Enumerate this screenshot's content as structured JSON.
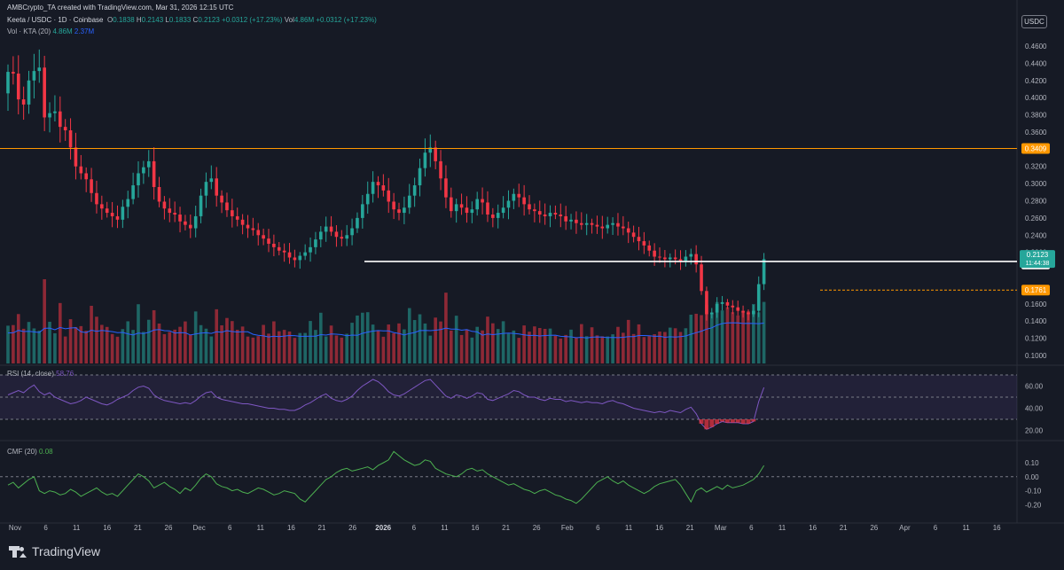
{
  "header": {
    "credit": "AMBCrypto_TA created with TradingView.com, Mar 31, 2026 12:15 UTC",
    "symbol": "Keeta / USDC · 1D · Coinbase",
    "ohlc": {
      "o_label": "O",
      "o": "0.1838",
      "h_label": "H",
      "h": "0.2143",
      "l_label": "L",
      "l": "0.1833",
      "c_label": "C",
      "c": "0.2123",
      "change": "+0.0312 (+17.23%)",
      "vol_label": "Vol",
      "vol": "4.86M",
      "vol_change": "+0.0312 (+17.23%)"
    },
    "vol_indicator": {
      "label": "Vol · KTA (20)",
      "value1": "4.86M",
      "value2": "2.37M"
    },
    "currency": "USDC"
  },
  "rsi": {
    "label": "RSI (14, close)",
    "value": "58.76"
  },
  "cmf": {
    "label": "CMF (20)",
    "value": "0.08"
  },
  "brand": "TradingView",
  "colors": {
    "up": "#26a69a",
    "down": "#f23645",
    "orange": "#ff9800",
    "rsi": "#7e57c2",
    "cmf": "#4caf50",
    "ma": "#2962ff"
  },
  "chart_data": {
    "type": "candlestick",
    "x_ticks": [
      "Nov",
      "6",
      "11",
      "16",
      "21",
      "26",
      "Dec",
      "6",
      "11",
      "16",
      "21",
      "26",
      "2026",
      "6",
      "11",
      "16",
      "21",
      "26",
      "Feb",
      "6",
      "11",
      "16",
      "21",
      "Mar",
      "6",
      "11",
      "16",
      "21",
      "26",
      "Apr",
      "6",
      "11",
      "16"
    ],
    "price_axis": {
      "ticks": [
        "0.4600",
        "0.4400",
        "0.4200",
        "0.4000",
        "0.3800",
        "0.3600",
        "0.3200",
        "0.3000",
        "0.2800",
        "0.2600",
        "0.2400",
        "0.2200",
        "0.1600",
        "0.1400",
        "0.1200",
        "0.1000"
      ],
      "range": [
        0.087,
        0.478
      ]
    },
    "levels": [
      {
        "label": "0.3409",
        "value": 0.3409,
        "color": "#ff9800"
      },
      {
        "label": "0.1761",
        "value": 0.1761,
        "color": "#ff9800"
      },
      {
        "label": "0.2065",
        "value": 0.2065,
        "color": "#ffffff"
      }
    ],
    "current_price": {
      "label": "0.2123",
      "countdown": "11:44:38",
      "value": 0.2123
    },
    "support_line": {
      "value": 0.2094,
      "from": "2025-12-29",
      "to": "2026-03-31"
    },
    "candles_close": [
      0.43,
      0.428,
      0.398,
      0.392,
      0.42,
      0.431,
      0.435,
      0.377,
      0.382,
      0.384,
      0.366,
      0.362,
      0.342,
      0.32,
      0.312,
      0.305,
      0.289,
      0.276,
      0.271,
      0.266,
      0.262,
      0.258,
      0.273,
      0.282,
      0.298,
      0.312,
      0.319,
      0.326,
      0.296,
      0.279,
      0.271,
      0.266,
      0.264,
      0.256,
      0.252,
      0.248,
      0.262,
      0.286,
      0.302,
      0.306,
      0.286,
      0.278,
      0.269,
      0.262,
      0.258,
      0.252,
      0.248,
      0.246,
      0.24,
      0.236,
      0.23,
      0.226,
      0.222,
      0.22,
      0.214,
      0.211,
      0.216,
      0.22,
      0.226,
      0.235,
      0.244,
      0.25,
      0.244,
      0.238,
      0.236,
      0.24,
      0.248,
      0.26,
      0.276,
      0.288,
      0.302,
      0.298,
      0.292,
      0.279,
      0.27,
      0.266,
      0.272,
      0.286,
      0.298,
      0.318,
      0.336,
      0.342,
      0.326,
      0.306,
      0.284,
      0.268,
      0.276,
      0.272,
      0.266,
      0.27,
      0.282,
      0.278,
      0.264,
      0.26,
      0.266,
      0.272,
      0.28,
      0.288,
      0.284,
      0.276,
      0.27,
      0.268,
      0.264,
      0.262,
      0.266,
      0.264,
      0.262,
      0.256,
      0.258,
      0.254,
      0.252,
      0.254,
      0.252,
      0.25,
      0.248,
      0.252,
      0.254,
      0.25,
      0.248,
      0.243,
      0.238,
      0.233,
      0.228,
      0.222,
      0.215,
      0.214,
      0.212,
      0.214,
      0.212,
      0.21,
      0.215,
      0.218,
      0.206,
      0.175,
      0.148,
      0.15,
      0.16,
      0.162,
      0.158,
      0.156,
      0.152,
      0.15,
      0.148,
      0.152,
      0.183,
      0.212
    ],
    "rsi_range": [
      14,
      74
    ],
    "rsi_ticks": [
      "60.00",
      "40.00",
      "20.00"
    ],
    "rsi_bands": [
      70,
      50,
      30
    ],
    "rsi_values": [
      52,
      54,
      56,
      54,
      58,
      61,
      55,
      52,
      54,
      50,
      48,
      46,
      44,
      45,
      47,
      50,
      48,
      46,
      44,
      43,
      45,
      48,
      50,
      52,
      56,
      59,
      60,
      58,
      52,
      49,
      47,
      46,
      45,
      44,
      45,
      44,
      47,
      51,
      54,
      55,
      50,
      48,
      47,
      46,
      45,
      44,
      44,
      43,
      42,
      41,
      40,
      40,
      39,
      39,
      38,
      38,
      40,
      43,
      45,
      48,
      51,
      53,
      49,
      47,
      46,
      48,
      51,
      56,
      60,
      63,
      66,
      64,
      60,
      55,
      52,
      51,
      53,
      56,
      59,
      62,
      65,
      66,
      61,
      56,
      51,
      49,
      52,
      51,
      49,
      51,
      54,
      53,
      48,
      47,
      49,
      51,
      53,
      56,
      55,
      52,
      50,
      50,
      48,
      47,
      49,
      48,
      48,
      46,
      47,
      46,
      45,
      46,
      45,
      45,
      44,
      46,
      47,
      45,
      44,
      42,
      40,
      39,
      38,
      37,
      36,
      37,
      36,
      38,
      37,
      36,
      39,
      41,
      35,
      26,
      21,
      23,
      26,
      28,
      27,
      27,
      27,
      26,
      26,
      28,
      46,
      58.76
    ],
    "cmf_range": [
      -0.28,
      0.22
    ],
    "cmf_ticks": [
      "0.10",
      "0.00",
      "-0.10",
      "-0.20"
    ],
    "cmf_values": [
      -0.06,
      -0.04,
      -0.08,
      -0.05,
      -0.02,
      0.0,
      -0.1,
      -0.12,
      -0.1,
      -0.11,
      -0.13,
      -0.12,
      -0.09,
      -0.11,
      -0.14,
      -0.12,
      -0.1,
      -0.08,
      -0.11,
      -0.13,
      -0.12,
      -0.14,
      -0.1,
      -0.06,
      -0.02,
      0.02,
      0.0,
      -0.03,
      -0.08,
      -0.06,
      -0.04,
      -0.07,
      -0.09,
      -0.12,
      -0.08,
      -0.1,
      -0.06,
      -0.01,
      0.02,
      0.0,
      -0.05,
      -0.07,
      -0.08,
      -0.1,
      -0.09,
      -0.11,
      -0.12,
      -0.1,
      -0.08,
      -0.09,
      -0.11,
      -0.13,
      -0.12,
      -0.1,
      -0.11,
      -0.12,
      -0.16,
      -0.18,
      -0.14,
      -0.1,
      -0.06,
      -0.02,
      0.0,
      0.03,
      0.05,
      0.06,
      0.04,
      0.05,
      0.06,
      0.07,
      0.05,
      0.08,
      0.1,
      0.12,
      0.18,
      0.15,
      0.12,
      0.1,
      0.08,
      0.09,
      0.12,
      0.11,
      0.06,
      0.04,
      0.02,
      0.01,
      0.0,
      0.02,
      0.05,
      0.06,
      0.04,
      0.05,
      0.02,
      0.0,
      -0.02,
      -0.04,
      -0.06,
      -0.05,
      -0.07,
      -0.09,
      -0.1,
      -0.12,
      -0.1,
      -0.09,
      -0.11,
      -0.13,
      -0.14,
      -0.16,
      -0.17,
      -0.19,
      -0.16,
      -0.12,
      -0.08,
      -0.04,
      -0.02,
      0.0,
      -0.03,
      -0.05,
      -0.03,
      -0.06,
      -0.08,
      -0.1,
      -0.12,
      -0.1,
      -0.07,
      -0.05,
      -0.04,
      -0.03,
      -0.02,
      -0.06,
      -0.12,
      -0.18,
      -0.1,
      -0.08,
      -0.11,
      -0.09,
      -0.07,
      -0.09,
      -0.06,
      -0.08,
      -0.07,
      -0.06,
      -0.04,
      -0.02,
      0.02,
      0.08
    ]
  }
}
